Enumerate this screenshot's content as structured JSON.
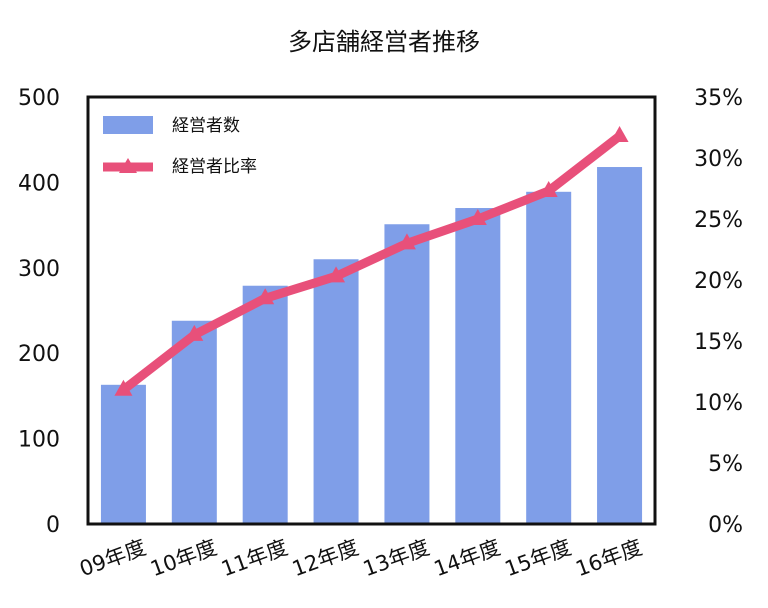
{
  "chart_data": {
    "type": "bar",
    "title": "多店舗経営者推移",
    "categories": [
      "09年度",
      "10年度",
      "11年度",
      "12年度",
      "13年度",
      "14年度",
      "15年度",
      "16年度"
    ],
    "series": [
      {
        "name": "経営者数",
        "type": "bar",
        "axis": "left",
        "color": "#7f9ee8",
        "values": [
          163,
          238,
          279,
          310,
          351,
          370,
          389,
          418
        ]
      },
      {
        "name": "経営者比率",
        "type": "line",
        "axis": "right",
        "color": "#e8507a",
        "marker": "triangle",
        "values": [
          11.0,
          15.5,
          18.5,
          20.3,
          23.0,
          25.0,
          27.3,
          31.8
        ]
      }
    ],
    "y_left": {
      "ylim": [
        0,
        500
      ],
      "ticks": [
        "0",
        "100",
        "200",
        "300",
        "400",
        "500"
      ]
    },
    "y_right": {
      "ylim": [
        0,
        35
      ],
      "ticks": [
        "0%",
        "5%",
        "10%",
        "15%",
        "20%",
        "25%",
        "30%",
        "35%"
      ]
    },
    "legend": "top-left",
    "grid": false
  }
}
